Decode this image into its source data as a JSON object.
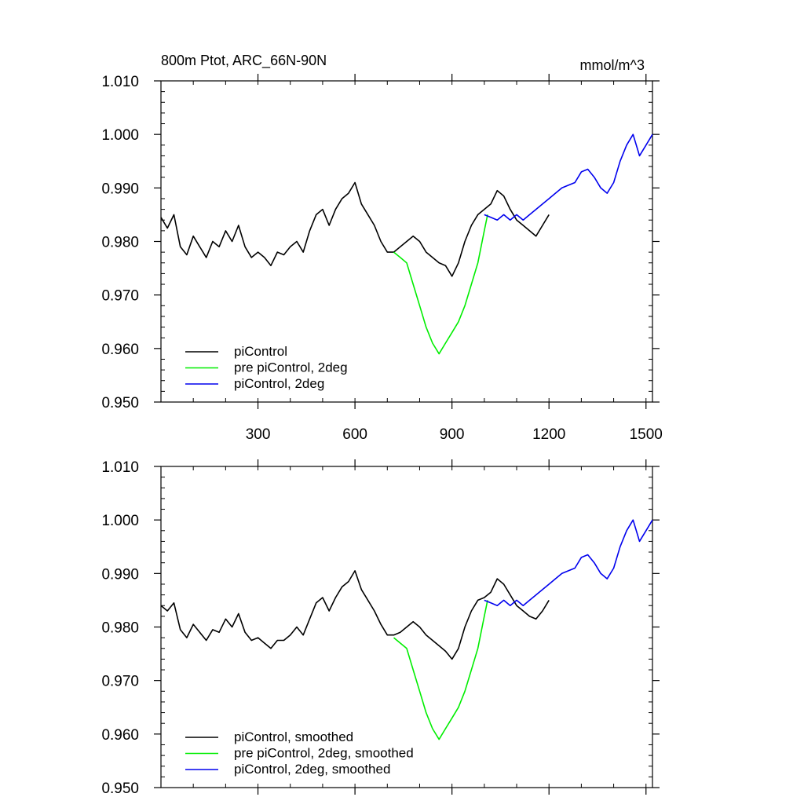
{
  "chart_data": [
    {
      "type": "line",
      "title": "800m Ptot, ARC_66N-90N",
      "units": "mmol/m^3",
      "xlabel": "",
      "ylabel": "",
      "xlim": [
        0,
        1520
      ],
      "ylim": [
        0.95,
        1.01
      ],
      "x_ticks": [
        300,
        600,
        900,
        1200,
        1500
      ],
      "x_tick_labels": [
        "300",
        "600",
        "900",
        "1200",
        "1500"
      ],
      "y_ticks": [
        0.95,
        0.96,
        0.97,
        0.98,
        0.99,
        1.0,
        1.01
      ],
      "y_tick_labels": [
        "0.950",
        "0.960",
        "0.970",
        "0.980",
        "0.990",
        "1.000",
        "1.010"
      ],
      "grid": false,
      "legend_position": "bottom-left",
      "series": [
        {
          "name": "piControl",
          "color": "#000000",
          "x": [
            0,
            20,
            40,
            60,
            80,
            100,
            120,
            140,
            160,
            180,
            200,
            220,
            240,
            260,
            280,
            300,
            320,
            340,
            360,
            380,
            400,
            420,
            440,
            460,
            480,
            500,
            520,
            540,
            560,
            580,
            600,
            620,
            640,
            660,
            680,
            700,
            720,
            740,
            760,
            780,
            800,
            820,
            840,
            860,
            880,
            900,
            920,
            940,
            960,
            980,
            1000,
            1020,
            1040,
            1060,
            1080,
            1100,
            1120,
            1140,
            1160,
            1180,
            1200
          ],
          "y": [
            0.9845,
            0.9825,
            0.985,
            0.979,
            0.9775,
            0.981,
            0.979,
            0.977,
            0.98,
            0.979,
            0.982,
            0.98,
            0.983,
            0.979,
            0.977,
            0.978,
            0.977,
            0.9755,
            0.978,
            0.9775,
            0.979,
            0.98,
            0.978,
            0.982,
            0.985,
            0.986,
            0.983,
            0.986,
            0.988,
            0.989,
            0.991,
            0.987,
            0.985,
            0.983,
            0.98,
            0.978,
            0.978,
            0.979,
            0.98,
            0.981,
            0.98,
            0.978,
            0.977,
            0.976,
            0.9755,
            0.9735,
            0.976,
            0.98,
            0.983,
            0.985,
            0.986,
            0.987,
            0.9895,
            0.9885,
            0.986,
            0.984,
            0.983,
            0.982,
            0.981,
            0.983,
            0.985
          ]
        },
        {
          "name": "pre piControl, 2deg",
          "color": "#00ee00",
          "x": [
            720,
            740,
            760,
            780,
            800,
            820,
            840,
            860,
            880,
            900,
            920,
            940,
            960,
            980,
            1000,
            1010
          ],
          "y": [
            0.978,
            0.977,
            0.976,
            0.972,
            0.968,
            0.964,
            0.961,
            0.959,
            0.961,
            0.963,
            0.965,
            0.968,
            0.972,
            0.976,
            0.982,
            0.985
          ]
        },
        {
          "name": "piControl, 2deg",
          "color": "#0000ee",
          "x": [
            1000,
            1020,
            1040,
            1060,
            1080,
            1100,
            1120,
            1140,
            1160,
            1180,
            1200,
            1220,
            1240,
            1260,
            1280,
            1300,
            1320,
            1340,
            1360,
            1380,
            1400,
            1420,
            1440,
            1460,
            1480,
            1500,
            1520
          ],
          "y": [
            0.985,
            0.9845,
            0.984,
            0.985,
            0.984,
            0.985,
            0.984,
            0.985,
            0.986,
            0.987,
            0.988,
            0.989,
            0.99,
            0.9905,
            0.991,
            0.993,
            0.9935,
            0.992,
            0.99,
            0.989,
            0.991,
            0.995,
            0.998,
            1.0,
            0.996,
            0.998,
            1.0
          ]
        }
      ]
    },
    {
      "type": "line",
      "title": "",
      "xlabel": "",
      "ylabel": "",
      "xlim": [
        0,
        1520
      ],
      "ylim": [
        0.95,
        1.01
      ],
      "x_ticks": [
        300,
        600,
        900,
        1200,
        1500
      ],
      "x_tick_labels": [],
      "y_ticks": [
        0.95,
        0.96,
        0.97,
        0.98,
        0.99,
        1.0,
        1.01
      ],
      "y_tick_labels": [
        "0.950",
        "0.960",
        "0.970",
        "0.980",
        "0.990",
        "1.000",
        "1.010"
      ],
      "grid": false,
      "legend_position": "bottom-left",
      "series": [
        {
          "name": "piControl, smoothed",
          "color": "#000000",
          "x": [
            0,
            20,
            40,
            60,
            80,
            100,
            120,
            140,
            160,
            180,
            200,
            220,
            240,
            260,
            280,
            300,
            320,
            340,
            360,
            380,
            400,
            420,
            440,
            460,
            480,
            500,
            520,
            540,
            560,
            580,
            600,
            620,
            640,
            660,
            680,
            700,
            720,
            740,
            760,
            780,
            800,
            820,
            840,
            860,
            880,
            900,
            920,
            940,
            960,
            980,
            1000,
            1020,
            1040,
            1060,
            1080,
            1100,
            1120,
            1140,
            1160,
            1180,
            1200
          ],
          "y": [
            0.984,
            0.983,
            0.9845,
            0.9795,
            0.978,
            0.9805,
            0.979,
            0.9775,
            0.9795,
            0.979,
            0.9815,
            0.98,
            0.9825,
            0.979,
            0.9775,
            0.978,
            0.977,
            0.976,
            0.9775,
            0.9775,
            0.9785,
            0.98,
            0.9785,
            0.9815,
            0.9845,
            0.9855,
            0.983,
            0.9855,
            0.9875,
            0.9885,
            0.9905,
            0.987,
            0.985,
            0.983,
            0.9805,
            0.9785,
            0.9785,
            0.979,
            0.98,
            0.981,
            0.98,
            0.9785,
            0.9775,
            0.9765,
            0.9755,
            0.974,
            0.976,
            0.98,
            0.983,
            0.985,
            0.9855,
            0.9865,
            0.989,
            0.988,
            0.986,
            0.984,
            0.983,
            0.982,
            0.9815,
            0.983,
            0.985
          ]
        },
        {
          "name": "pre piControl, 2deg, smoothed",
          "color": "#00ee00",
          "x": [
            720,
            740,
            760,
            780,
            800,
            820,
            840,
            860,
            880,
            900,
            920,
            940,
            960,
            980,
            1000,
            1010
          ],
          "y": [
            0.978,
            0.977,
            0.976,
            0.972,
            0.968,
            0.964,
            0.961,
            0.959,
            0.961,
            0.963,
            0.965,
            0.968,
            0.972,
            0.976,
            0.982,
            0.985
          ]
        },
        {
          "name": "piControl, 2deg, smoothed",
          "color": "#0000ee",
          "x": [
            1000,
            1020,
            1040,
            1060,
            1080,
            1100,
            1120,
            1140,
            1160,
            1180,
            1200,
            1220,
            1240,
            1260,
            1280,
            1300,
            1320,
            1340,
            1360,
            1380,
            1400,
            1420,
            1440,
            1460,
            1480,
            1500,
            1520
          ],
          "y": [
            0.985,
            0.9845,
            0.984,
            0.985,
            0.984,
            0.985,
            0.984,
            0.985,
            0.986,
            0.987,
            0.988,
            0.989,
            0.99,
            0.9905,
            0.991,
            0.993,
            0.9935,
            0.992,
            0.99,
            0.989,
            0.991,
            0.995,
            0.998,
            1.0,
            0.996,
            0.998,
            1.0
          ]
        }
      ]
    }
  ]
}
